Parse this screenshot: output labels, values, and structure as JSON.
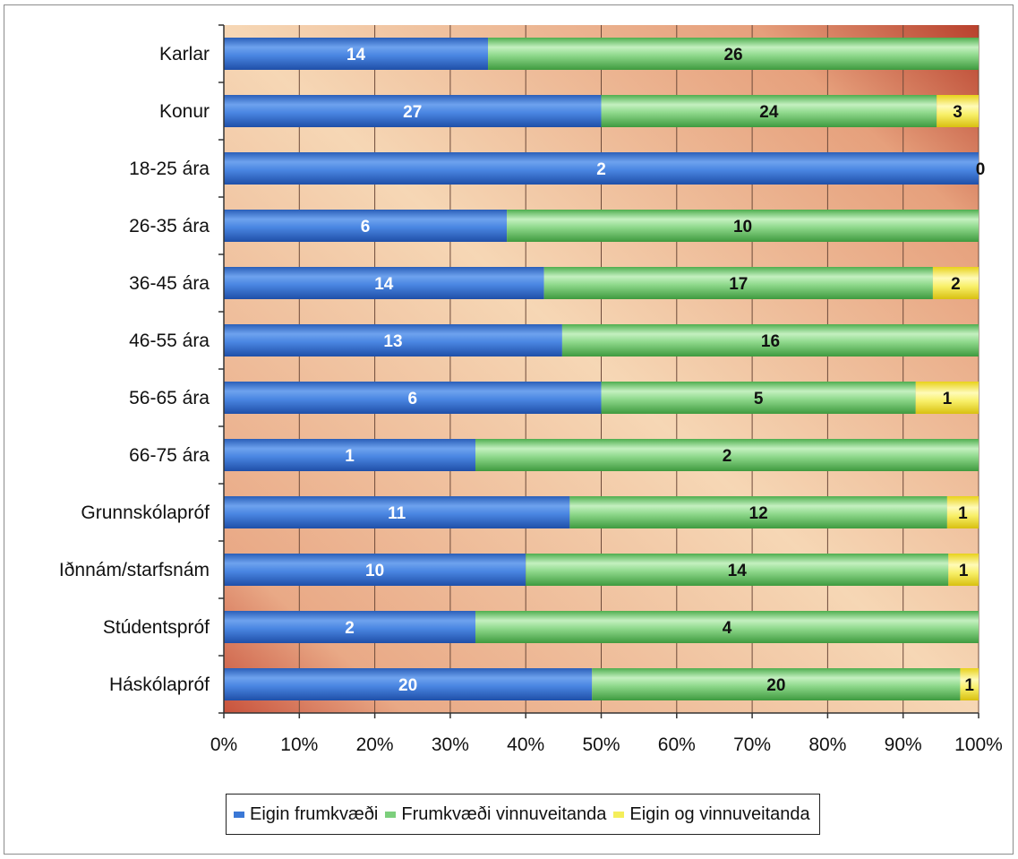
{
  "chart_data": {
    "type": "bar",
    "orientation": "horizontal",
    "stacked": "percent",
    "title": "",
    "xlabel": "",
    "ylabel": "",
    "xlim": [
      0,
      100
    ],
    "x_ticks": [
      "0%",
      "10%",
      "20%",
      "30%",
      "40%",
      "50%",
      "60%",
      "70%",
      "80%",
      "90%",
      "100%"
    ],
    "grid": true,
    "legend_position": "bottom",
    "categories": [
      "Karlar",
      "Konur",
      "18-25 ára",
      "26-35 ára",
      "36-45 ára",
      "46-55 ára",
      "56-65 ára",
      "66-75 ára",
      "Grunnskólapróf",
      "Iðnnám/starfsnám",
      "Stúdentspróf",
      "Háskólapróf"
    ],
    "series": [
      {
        "name": "Eigin frumkvæði",
        "color": "#3a78d6",
        "values": [
          14,
          27,
          2,
          6,
          14,
          13,
          6,
          1,
          11,
          10,
          2,
          20
        ]
      },
      {
        "name": "Frumkvæði vinnuveitanda",
        "color": "#7ccf7c",
        "values": [
          26,
          24,
          0,
          10,
          17,
          16,
          5,
          2,
          12,
          14,
          4,
          20
        ]
      },
      {
        "name": "Eigin og vinnuveitanda",
        "color": "#f4ee5a",
        "values": [
          0,
          3,
          0,
          0,
          2,
          0,
          1,
          0,
          1,
          1,
          0,
          1
        ]
      }
    ],
    "labels": [
      [
        "14",
        "26",
        ""
      ],
      [
        "27",
        "24",
        "3"
      ],
      [
        "2",
        "",
        "0"
      ],
      [
        "6",
        "10",
        ""
      ],
      [
        "14",
        "17",
        "2"
      ],
      [
        "13",
        "16",
        ""
      ],
      [
        "6",
        "5",
        "1"
      ],
      [
        "1",
        "2",
        ""
      ],
      [
        "11",
        "12",
        "1"
      ],
      [
        "10",
        "14",
        "1"
      ],
      [
        "2",
        "4",
        ""
      ],
      [
        "20",
        "20",
        "1"
      ]
    ]
  }
}
